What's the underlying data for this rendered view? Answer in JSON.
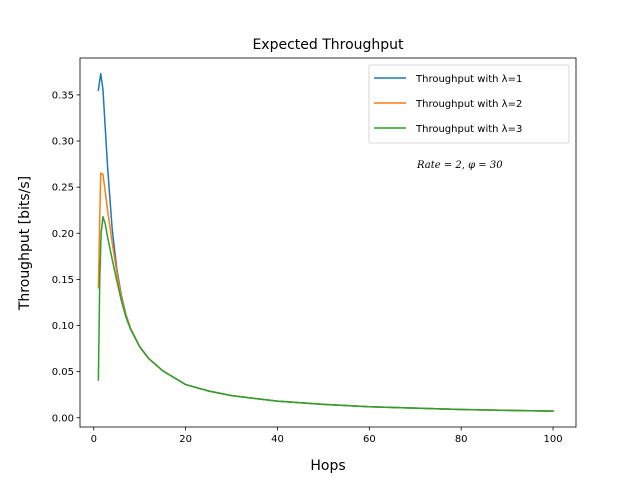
{
  "chart_data": {
    "type": "line",
    "title": "Expected Throughput",
    "xlabel": "Hops",
    "ylabel": "Throughput [bits/s]",
    "xlim": [
      -3,
      105
    ],
    "ylim": [
      -0.01,
      0.39
    ],
    "x_ticks": [
      0,
      20,
      40,
      60,
      80,
      100
    ],
    "x_tick_labels": [
      "0",
      "20",
      "40",
      "60",
      "80",
      "100"
    ],
    "y_ticks": [
      0.0,
      0.05,
      0.1,
      0.15,
      0.2,
      0.25,
      0.3,
      0.35
    ],
    "y_tick_labels": [
      "0.00",
      "0.05",
      "0.10",
      "0.15",
      "0.20",
      "0.25",
      "0.30",
      "0.35"
    ],
    "grid": false,
    "legend_position": "top-right",
    "annotation": "Rate = 2, φ = 30",
    "series": [
      {
        "name": "Throughput with λ=1",
        "color": "#1f77b4",
        "x": [
          1,
          1.5,
          2,
          3,
          4,
          5,
          6,
          7,
          8,
          10,
          12,
          15,
          20,
          25,
          30,
          40,
          50,
          60,
          70,
          80,
          90,
          100
        ],
        "y": [
          0.355,
          0.373,
          0.356,
          0.272,
          0.205,
          0.162,
          0.133,
          0.112,
          0.097,
          0.077,
          0.064,
          0.051,
          0.036,
          0.029,
          0.024,
          0.018,
          0.0145,
          0.012,
          0.0104,
          0.009,
          0.008,
          0.0072
        ]
      },
      {
        "name": "Throughput with λ=2",
        "color": "#ff7f0e",
        "x": [
          1,
          1.5,
          2,
          2.5,
          3,
          4,
          5,
          6,
          7,
          8,
          10,
          12,
          15,
          20,
          25,
          30,
          40,
          50,
          60,
          70,
          80,
          90,
          100
        ],
        "y": [
          0.141,
          0.265,
          0.264,
          0.245,
          0.225,
          0.19,
          0.158,
          0.131,
          0.111,
          0.097,
          0.077,
          0.064,
          0.051,
          0.036,
          0.029,
          0.024,
          0.018,
          0.0145,
          0.012,
          0.0104,
          0.009,
          0.008,
          0.0072
        ]
      },
      {
        "name": "Throughput with λ=3",
        "color": "#2ca02c",
        "x": [
          1,
          1.3,
          1.6,
          2,
          2.5,
          3,
          4,
          5,
          6,
          7,
          8,
          10,
          12,
          15,
          20,
          25,
          30,
          40,
          50,
          60,
          70,
          80,
          90,
          100
        ],
        "y": [
          0.041,
          0.15,
          0.2,
          0.218,
          0.21,
          0.196,
          0.172,
          0.149,
          0.127,
          0.109,
          0.096,
          0.077,
          0.064,
          0.051,
          0.036,
          0.029,
          0.024,
          0.018,
          0.0145,
          0.012,
          0.0104,
          0.009,
          0.008,
          0.0072
        ]
      }
    ]
  }
}
